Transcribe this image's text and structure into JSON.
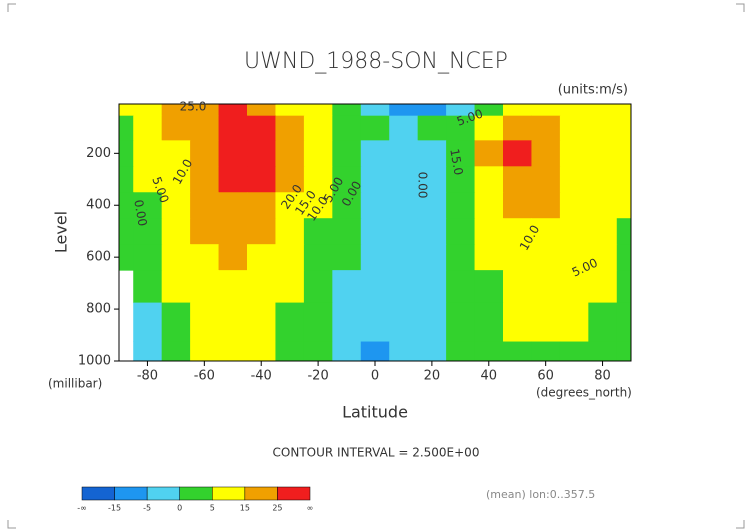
{
  "chart_data": {
    "type": "contour",
    "title": "UWND_1988-SON_NCEP",
    "subtitle": "(units:m/s)",
    "y_label": "Level",
    "y_unit": "(millibar)",
    "x_label": "Latitude",
    "x_unit": "(degrees_north)",
    "contour_interval": "CONTOUR INTERVAL = 2.500E+00",
    "footnote": "(mean) lon:0..357.5",
    "x": [
      -90,
      -80,
      -70,
      -60,
      -50,
      -40,
      -30,
      -20,
      -10,
      0,
      10,
      20,
      30,
      40,
      50,
      60,
      70,
      80,
      90
    ],
    "y": [
      10,
      100,
      200,
      300,
      400,
      500,
      600,
      700,
      850,
      1000
    ],
    "z": [
      [
        5,
        10,
        15,
        20,
        25,
        20,
        10,
        5,
        0,
        -5,
        -10,
        -10,
        -5,
        0,
        5,
        10,
        10,
        8,
        5
      ],
      [
        3,
        8,
        15,
        22,
        28,
        25,
        15,
        8,
        3,
        0,
        -2,
        0,
        2,
        8,
        15,
        15,
        10,
        8,
        5
      ],
      [
        2,
        6,
        14,
        22,
        30,
        30,
        22,
        10,
        3,
        -1,
        -3,
        -1,
        4,
        15,
        27,
        22,
        13,
        8,
        5
      ],
      [
        1,
        5,
        12,
        20,
        28,
        28,
        18,
        8,
        2,
        -2,
        -4,
        -2,
        3,
        13,
        23,
        20,
        12,
        8,
        5
      ],
      [
        0,
        4,
        10,
        18,
        24,
        22,
        12,
        5,
        1,
        -2,
        -4,
        -2,
        2,
        10,
        18,
        16,
        11,
        7,
        5
      ],
      [
        0,
        3,
        8,
        15,
        20,
        18,
        9,
        4,
        0,
        -2,
        -5,
        -2,
        1,
        7,
        14,
        13,
        10,
        7,
        4
      ],
      [
        0,
        2,
        7,
        13,
        16,
        13,
        6,
        3,
        0,
        -3,
        -5,
        -2,
        0,
        5,
        11,
        11,
        9,
        6,
        4
      ],
      [
        null,
        1,
        6,
        11,
        13,
        10,
        5,
        2,
        -1,
        -4,
        -5,
        -2,
        0,
        4,
        8,
        9,
        8,
        5,
        3
      ],
      [
        null,
        -1,
        4,
        9,
        10,
        7,
        4,
        1,
        -2,
        -5,
        -4,
        -2,
        0,
        3,
        5,
        7,
        6,
        4,
        2
      ],
      [
        null,
        -2,
        2,
        6,
        7,
        5,
        3,
        0,
        -3,
        -6,
        -3,
        -1,
        0,
        1,
        3,
        4,
        4,
        3,
        1
      ]
    ],
    "xlim": [
      -90,
      90
    ],
    "xticks": [
      -80,
      -60,
      -40,
      -20,
      0,
      20,
      40,
      60,
      80
    ],
    "ylim": [
      1000,
      10
    ],
    "yticks": [
      200,
      400,
      600,
      800,
      1000
    ],
    "contour_labels": [
      "25.0",
      "10.0",
      "5.00",
      "0.00",
      "20.0",
      "15.0",
      "10.0",
      "5.00",
      "0.00",
      "0.00",
      "5.00",
      "15.0",
      "10.0",
      "5.00"
    ],
    "colorbar": {
      "ticks": [
        "-∞",
        -15,
        -5,
        0,
        5,
        15,
        25,
        "∞"
      ],
      "colors": [
        "#1464d2",
        "#1e96f0",
        "#50d2f0",
        "#33d22d",
        "#ffff00",
        "#f0a000",
        "#f01e1e"
      ]
    }
  }
}
